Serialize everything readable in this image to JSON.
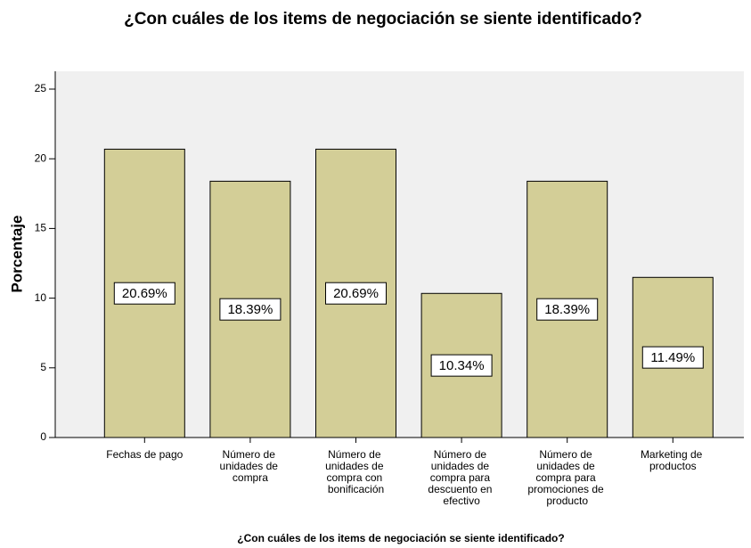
{
  "chart_data": {
    "type": "bar",
    "title": "¿Con cuáles de los items de negociación se siente identificado?",
    "x_label": "¿Con cuáles de los items de negociación se siente identificado?",
    "y_label": "Porcentaje",
    "categories": [
      "Fechas de pago",
      "Número de unidades de compra",
      "Número de unidades de compra con bonificación",
      "Número de unidades de compra para descuento en efectivo",
      "Número de unidades de compra para promociones de producto",
      "Marketing de productos"
    ],
    "values": [
      20.69,
      18.39,
      20.69,
      10.34,
      18.39,
      11.49
    ],
    "value_labels": [
      "20.69%",
      "18.39%",
      "20.69%",
      "10.34%",
      "18.39%",
      "11.49%"
    ],
    "color": "#d3ce97",
    "ylim": [
      0,
      25
    ],
    "yticks": [
      0,
      5,
      10,
      15,
      20,
      25
    ],
    "grid": false
  }
}
